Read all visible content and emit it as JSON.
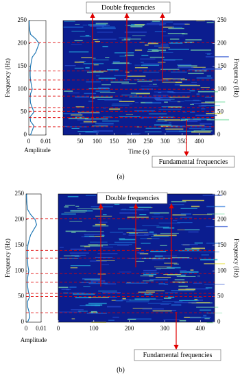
{
  "chart_data": [
    {
      "type": "spectrogram",
      "caption": "(a)",
      "amplitude_plot": {
        "xlabel": "Amplitude",
        "ylabel": "Frequency (Hz)",
        "xlim": [
          0,
          0.01
        ],
        "xticks": [
          0,
          0.01
        ],
        "ylim": [
          0,
          250
        ],
        "yticks": [
          0,
          50,
          100,
          150,
          200,
          250
        ],
        "color": "#1f77b4",
        "frequency": [
          0,
          10,
          20,
          30,
          40,
          50,
          60,
          70,
          80,
          90,
          100,
          110,
          120,
          130,
          140,
          150,
          160,
          170,
          180,
          190,
          200,
          210,
          220,
          230,
          240,
          250
        ],
        "amplitude": [
          0.001,
          0.002,
          0.003,
          0.001,
          0.0008,
          0.003,
          0.002,
          0.001,
          0.0008,
          0.001,
          0.002,
          0.0015,
          0.001,
          0.0008,
          0.0008,
          0.001,
          0.0015,
          0.002,
          0.004,
          0.005,
          0.006,
          0.004,
          0.001,
          0.0005,
          0.0003,
          0.0002
        ]
      },
      "spectrogram": {
        "xlabel": "Time (s)",
        "ylabel": "Frequency (Hz)",
        "xlim": [
          0,
          445
        ],
        "xticks": [
          50,
          100,
          150,
          200,
          250,
          300,
          350,
          400
        ],
        "ylim": [
          0,
          250
        ],
        "yticks": [
          0,
          50,
          100,
          150,
          200,
          250
        ]
      },
      "reference_lines": [
        202,
        140,
        120,
        100,
        85,
        60,
        52,
        38,
        18
      ],
      "reference_color": "#e00000",
      "annotations": [
        {
          "text": "Double frequencies"
        },
        {
          "text": "Fundamental frequencies"
        }
      ]
    },
    {
      "type": "spectrogram",
      "caption": "(b)",
      "amplitude_plot": {
        "xlabel": "Amplitude",
        "ylabel": "Frequency (Hz)",
        "xlim": [
          0,
          0.01
        ],
        "xticks": [
          0,
          0.01
        ],
        "ylim": [
          0,
          250
        ],
        "yticks": [
          0,
          50,
          100,
          150,
          200,
          250
        ],
        "color": "#1f77b4",
        "frequency": [
          0,
          10,
          20,
          30,
          40,
          50,
          60,
          70,
          80,
          90,
          100,
          110,
          120,
          130,
          140,
          150,
          160,
          170,
          180,
          190,
          200,
          210,
          220,
          230,
          240,
          250
        ],
        "amplitude": [
          0.001,
          0.0025,
          0.002,
          0.001,
          0.0009,
          0.0025,
          0.0015,
          0.001,
          0.0008,
          0.0012,
          0.0018,
          0.0012,
          0.001,
          0.0009,
          0.001,
          0.0012,
          0.002,
          0.003,
          0.005,
          0.007,
          0.006,
          0.003,
          0.001,
          0.0006,
          0.0004,
          0.0003
        ]
      },
      "spectrogram": {
        "ylabel": "Frequency (Hz)",
        "xlim": [
          0,
          440
        ],
        "xticks": [
          0,
          100,
          200,
          300,
          400
        ],
        "ylim": [
          0,
          250
        ],
        "yticks": [
          0,
          50,
          100,
          150,
          200,
          250
        ]
      },
      "reference_lines": [
        202,
        140,
        125,
        95,
        78,
        56,
        50,
        18
      ],
      "reference_color": "#e00000",
      "annotations": [
        {
          "text": "Double frequencies"
        },
        {
          "text": "Fundamental frequencies"
        }
      ]
    }
  ]
}
